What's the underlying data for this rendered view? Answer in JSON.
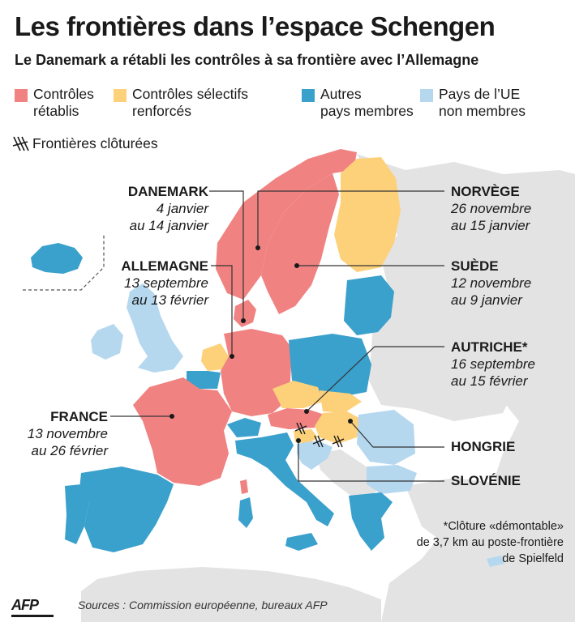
{
  "header": {
    "title": "Les frontières dans l’espace Schengen",
    "subtitle": "Le Danemark a rétabli les contrôles à sa frontière avec l’Allemagne"
  },
  "legend": {
    "items": [
      {
        "label": "Contrôles\nrétablis",
        "color": "#f08282"
      },
      {
        "label": "Contrôles sélectifs\nrenforcés",
        "color": "#fdd17a"
      },
      {
        "label": "Autres\npays membres",
        "color": "#3aa0cc"
      },
      {
        "label": "Pays de l’UE\nnon membres",
        "color": "#b5d8ef"
      }
    ],
    "fence_label": "Frontières clôturées",
    "fence_icon": "fence-icon"
  },
  "colors": {
    "restored": "#f08282",
    "selective": "#fdd17a",
    "member": "#3aa0cc",
    "eu_non_member": "#b5d8ef",
    "other_land": "#e3e3e3",
    "leader_line": "#333333"
  },
  "countries": {
    "danemark": {
      "name": "DANEMARK",
      "dates": "4 janvier\nau 14 janvier"
    },
    "allemagne": {
      "name": "ALLEMAGNE",
      "dates": "13 septembre\nau 13 février"
    },
    "france": {
      "name": "FRANCE",
      "dates": "13 novembre\nau 26 février"
    },
    "norvege": {
      "name": "NORVÈGE",
      "dates": "26 novembre\nau 15 janvier"
    },
    "suede": {
      "name": "SUÈDE",
      "dates": "12 novembre\nau 9 janvier"
    },
    "autriche": {
      "name": "AUTRICHE*",
      "dates": "16 septembre\nau 15 février"
    },
    "hongrie": {
      "name": "HONGRIE"
    },
    "slovenie": {
      "name": "SLOVÉNIE"
    }
  },
  "footnote": "*Clôture «démontable»\nde 3,7 km au poste-frontière\nde Spielfeld",
  "footer": {
    "logo": "AFP",
    "sources": "Sources : Commission européenne, bureaux AFP"
  }
}
